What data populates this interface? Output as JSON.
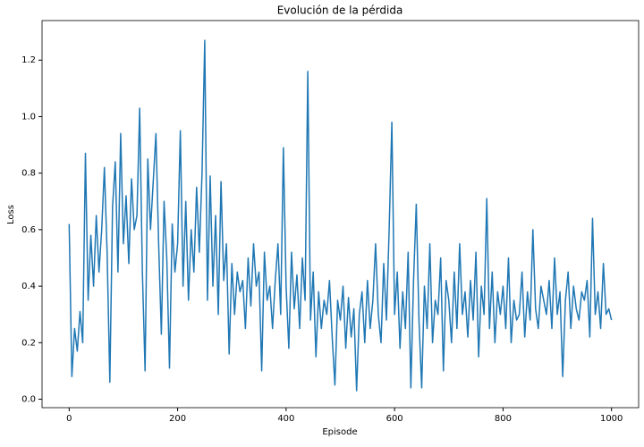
{
  "chart_data": {
    "type": "line",
    "title": "Evolución de la pérdida",
    "x_label": "Episode",
    "y_label": "Loss",
    "color": "#1f77b4",
    "x": [
      0,
      5,
      10,
      15,
      20,
      25,
      30,
      35,
      40,
      45,
      50,
      55,
      60,
      65,
      70,
      75,
      80,
      85,
      90,
      95,
      100,
      105,
      110,
      115,
      120,
      125,
      130,
      135,
      140,
      145,
      150,
      155,
      160,
      165,
      170,
      175,
      180,
      185,
      190,
      195,
      200,
      205,
      210,
      215,
      220,
      225,
      230,
      235,
      240,
      245,
      250,
      255,
      260,
      265,
      270,
      275,
      280,
      285,
      290,
      295,
      300,
      305,
      310,
      315,
      320,
      325,
      330,
      335,
      340,
      345,
      350,
      355,
      360,
      365,
      370,
      375,
      380,
      385,
      390,
      395,
      400,
      405,
      410,
      415,
      420,
      425,
      430,
      435,
      440,
      445,
      450,
      455,
      460,
      465,
      470,
      475,
      480,
      485,
      490,
      495,
      500,
      505,
      510,
      515,
      520,
      525,
      530,
      535,
      540,
      545,
      550,
      555,
      560,
      565,
      570,
      575,
      580,
      585,
      590,
      595,
      600,
      605,
      610,
      615,
      620,
      625,
      630,
      635,
      640,
      645,
      650,
      655,
      660,
      665,
      670,
      675,
      680,
      685,
      690,
      695,
      700,
      705,
      710,
      715,
      720,
      725,
      730,
      735,
      740,
      745,
      750,
      755,
      760,
      765,
      770,
      775,
      780,
      785,
      790,
      795,
      800,
      805,
      810,
      815,
      820,
      825,
      830,
      835,
      840,
      845,
      850,
      855,
      860,
      865,
      870,
      875,
      880,
      885,
      890,
      895,
      900,
      905,
      910,
      915,
      920,
      925,
      930,
      935,
      940,
      945,
      950,
      955,
      960,
      965,
      970,
      975,
      980,
      985,
      990,
      995,
      1000
    ],
    "values": [
      0.62,
      0.08,
      0.25,
      0.17,
      0.31,
      0.2,
      0.87,
      0.35,
      0.58,
      0.4,
      0.65,
      0.45,
      0.6,
      0.82,
      0.52,
      0.06,
      0.68,
      0.84,
      0.45,
      0.94,
      0.55,
      0.72,
      0.48,
      0.78,
      0.6,
      0.65,
      1.03,
      0.45,
      0.1,
      0.85,
      0.6,
      0.77,
      0.94,
      0.55,
      0.23,
      0.7,
      0.5,
      0.11,
      0.62,
      0.45,
      0.55,
      0.95,
      0.4,
      0.7,
      0.35,
      0.6,
      0.45,
      0.75,
      0.52,
      0.8,
      1.27,
      0.35,
      0.79,
      0.4,
      0.65,
      0.3,
      0.77,
      0.42,
      0.55,
      0.16,
      0.48,
      0.3,
      0.45,
      0.38,
      0.42,
      0.25,
      0.5,
      0.33,
      0.55,
      0.4,
      0.45,
      0.1,
      0.52,
      0.35,
      0.4,
      0.25,
      0.42,
      0.55,
      0.3,
      0.89,
      0.4,
      0.18,
      0.52,
      0.32,
      0.44,
      0.25,
      0.5,
      0.35,
      1.16,
      0.28,
      0.45,
      0.15,
      0.38,
      0.25,
      0.35,
      0.3,
      0.42,
      0.22,
      0.05,
      0.35,
      0.28,
      0.4,
      0.18,
      0.36,
      0.22,
      0.32,
      0.03,
      0.3,
      0.38,
      0.2,
      0.42,
      0.25,
      0.35,
      0.55,
      0.3,
      0.2,
      0.48,
      0.28,
      0.6,
      0.98,
      0.3,
      0.45,
      0.18,
      0.38,
      0.25,
      0.52,
      0.04,
      0.42,
      0.69,
      0.28,
      0.04,
      0.4,
      0.25,
      0.55,
      0.2,
      0.35,
      0.3,
      0.5,
      0.1,
      0.42,
      0.35,
      0.2,
      0.45,
      0.25,
      0.55,
      0.3,
      0.38,
      0.22,
      0.42,
      0.28,
      0.52,
      0.15,
      0.4,
      0.3,
      0.71,
      0.25,
      0.45,
      0.2,
      0.38,
      0.3,
      0.4,
      0.25,
      0.5,
      0.2,
      0.35,
      0.28,
      0.3,
      0.45,
      0.22,
      0.38,
      0.28,
      0.6,
      0.32,
      0.25,
      0.4,
      0.35,
      0.3,
      0.42,
      0.25,
      0.5,
      0.3,
      0.38,
      0.08,
      0.35,
      0.45,
      0.25,
      0.4,
      0.32,
      0.28,
      0.38,
      0.35,
      0.42,
      0.22,
      0.64,
      0.3,
      0.38,
      0.25,
      0.48,
      0.3,
      0.32,
      0.28
    ],
    "xlim": [
      -50,
      1050
    ],
    "xticks": [
      0,
      200,
      400,
      600,
      800,
      1000
    ],
    "ylim": [
      -0.03,
      1.34
    ],
    "yticks": [
      {
        "value": 0,
        "label": "0.0"
      },
      0.2,
      0.4,
      0.6,
      0.8,
      {
        "value": 1,
        "label": "1.0"
      },
      1.2
    ]
  }
}
